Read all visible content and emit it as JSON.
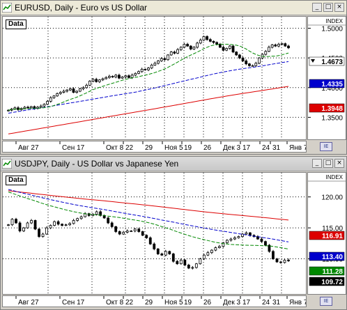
{
  "window1": {
    "title": "EURUSD, Daily - Euro vs US Dollar",
    "data_label": "Data",
    "index_label": "INDEX",
    "price_ticks": [
      "1.5000",
      "1.4500",
      "1.4000",
      "1.3500"
    ],
    "price_tags": [
      {
        "text": "1.4673",
        "bg": "#ffffff",
        "fg": "#000000"
      },
      {
        "text": "1.4335",
        "bg": "#0000cc",
        "fg": "#ffffff"
      },
      {
        "text": "1.3948",
        "bg": "#dd0000",
        "fg": "#ffffff"
      }
    ],
    "time_labels": [
      "Авг 27",
      "Сен 17",
      "Окт 8",
      "22",
      "29",
      "Ноя 5",
      "19",
      "26",
      "Дек 3",
      "17",
      "24",
      "31",
      "Янв 7"
    ]
  },
  "window2": {
    "title": "USDJPY, Daily - US Dollar vs Japanese Yen",
    "data_label": "Data",
    "index_label": "INDEX",
    "price_ticks": [
      "120.00",
      "115.00",
      "110.00"
    ],
    "price_tags": [
      {
        "text": "116.91",
        "bg": "#dd0000",
        "fg": "#ffffff"
      },
      {
        "text": "113.40",
        "bg": "#0000cc",
        "fg": "#ffffff"
      },
      {
        "text": "111.28",
        "bg": "#008800",
        "fg": "#ffffff"
      },
      {
        "text": "109.72",
        "bg": "#000000",
        "fg": "#ffffff"
      }
    ],
    "time_labels": [
      "Авг 27",
      "Сен 17",
      "Окт 8",
      "22",
      "29",
      "Ноя 5",
      "19",
      "26",
      "Дек 3",
      "17",
      "24",
      "31",
      "Янв 7"
    ]
  },
  "corner_button": "IE",
  "colors": {
    "ma_green": "#008800",
    "ma_blue": "#0000cc",
    "ma_red": "#dd0000",
    "candle": "#000000"
  },
  "chart_data": [
    {
      "type": "candlestick",
      "title": "EURUSD, Daily - Euro vs US Dollar",
      "ylim": [
        1.32,
        1.51
      ],
      "ticks": [
        1.35,
        1.4,
        1.45,
        1.5
      ],
      "close": [
        1.362,
        1.364,
        1.366,
        1.363,
        1.365,
        1.367,
        1.366,
        1.368,
        1.365,
        1.367,
        1.369,
        1.372,
        1.377,
        1.383,
        1.386,
        1.39,
        1.392,
        1.394,
        1.396,
        1.398,
        1.392,
        1.394,
        1.398,
        1.4,
        1.404,
        1.411,
        1.414,
        1.41,
        1.413,
        1.415,
        1.417,
        1.419,
        1.418,
        1.421,
        1.416,
        1.418,
        1.42,
        1.417,
        1.421,
        1.424,
        1.427,
        1.431,
        1.43,
        1.433,
        1.438,
        1.441,
        1.445,
        1.449,
        1.447,
        1.455,
        1.46,
        1.458,
        1.464,
        1.468,
        1.473,
        1.47,
        1.465,
        1.468,
        1.475,
        1.48,
        1.486,
        1.481,
        1.478,
        1.476,
        1.473,
        1.468,
        1.463,
        1.466,
        1.47,
        1.46,
        1.455,
        1.45,
        1.445,
        1.44,
        1.437,
        1.437,
        1.441,
        1.45,
        1.456,
        1.461,
        1.468,
        1.472,
        1.47,
        1.473,
        1.474,
        1.47,
        1.467
      ],
      "ma_green_end": 1.458,
      "ma_blue_end": 1.4335,
      "ma_red_end": 1.3948
    },
    {
      "type": "candlestick",
      "title": "USDJPY, Daily - US Dollar vs Japanese Yen",
      "ylim": [
        105.0,
        123.0
      ],
      "ticks": [
        110.0,
        115.0,
        120.0
      ],
      "close": [
        115.5,
        116.4,
        115.8,
        114.5,
        115.0,
        115.8,
        116.2,
        114.8,
        113.6,
        114.0,
        115.0,
        115.4,
        116.0,
        115.6,
        115.4,
        115.5,
        115.7,
        116.2,
        116.5,
        116.8,
        117.3,
        117.0,
        117.2,
        117.6,
        117.0,
        116.6,
        115.8,
        115.2,
        114.4,
        114.0,
        114.3,
        114.5,
        114.5,
        114.8,
        114.4,
        113.8,
        113.4,
        112.4,
        111.6,
        110.8,
        110.6,
        111.2,
        110.8,
        109.6,
        109.2,
        109.8,
        109.0,
        108.5,
        108.6,
        109.2,
        110.0,
        110.6,
        111.0,
        111.4,
        111.8,
        112.0,
        112.6,
        113.0,
        113.2,
        113.4,
        113.6,
        114.0,
        114.2,
        113.8,
        113.6,
        113.2,
        112.8,
        112.2,
        111.2,
        110.0,
        109.5,
        109.4,
        109.8,
        109.72
      ],
      "ma_red_start": 121.0,
      "ma_red_end": 116.91,
      "ma_blue_start": 121.2,
      "ma_blue_end": 113.4,
      "ma_green_start": 120.8,
      "ma_green_end": 111.28
    }
  ]
}
